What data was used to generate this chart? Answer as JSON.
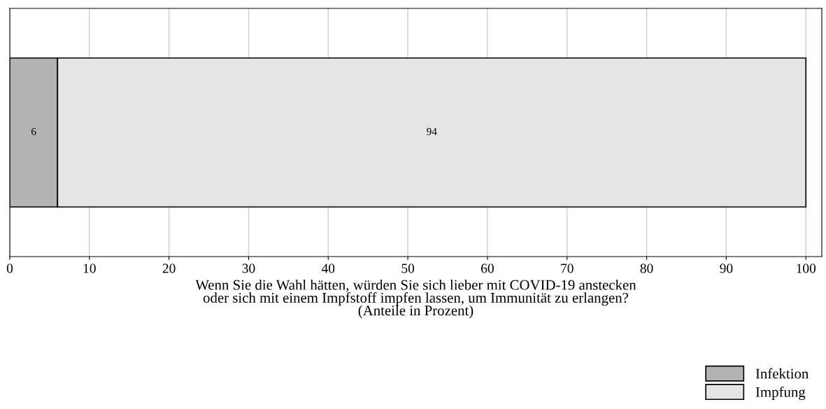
{
  "chart_data": {
    "type": "bar",
    "orientation": "horizontal",
    "stacked": true,
    "categories": [
      null
    ],
    "series": [
      {
        "name": "Infektion",
        "color": "#b3b3b3",
        "values": [
          6
        ]
      },
      {
        "name": "Impfung",
        "color": "#e5e5e5",
        "values": [
          94
        ]
      }
    ],
    "xlabel": "Wenn Sie die Wahl hätten, würden Sie sich lieber mit COVID-19 anstecken\noder sich mit einem Impfstoff impfen lassen, um Immunität zu erlangen?\n(Anteile in Prozent)",
    "xlim": [
      0,
      102
    ],
    "xticks": [
      0,
      10,
      20,
      30,
      40,
      50,
      60,
      70,
      80,
      90,
      100
    ],
    "grid": "x",
    "legend": "bottom right",
    "data_labels": true,
    "tick_labels": "x"
  }
}
